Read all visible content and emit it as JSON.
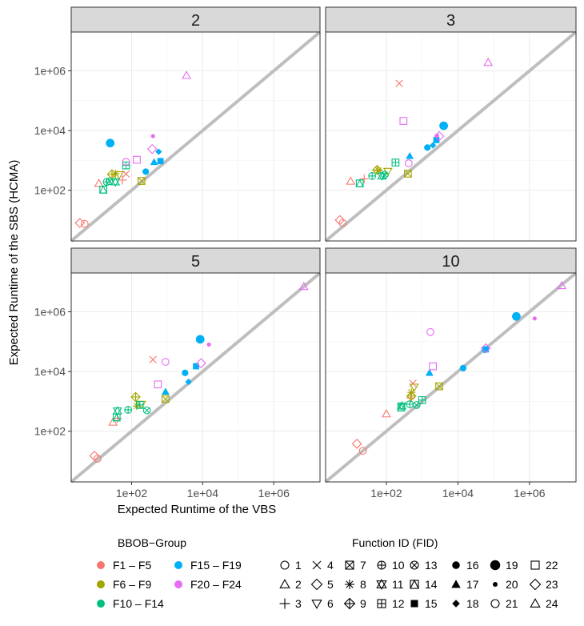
{
  "chart_data": {
    "type": "scatter",
    "facet_by": "dimension",
    "panels": [
      {
        "label": "2",
        "points": [
          {
            "fid": 1,
            "x": 4.8,
            "y": 7.5
          },
          {
            "fid": 2,
            "x": 12,
            "y": 170
          },
          {
            "fid": 3,
            "x": 55,
            "y": 220
          },
          {
            "fid": 4,
            "x": 70,
            "y": 350
          },
          {
            "fid": 5,
            "x": 3.5,
            "y": 8
          },
          {
            "fid": 6,
            "x": 45,
            "y": 330
          },
          {
            "fid": 7,
            "x": 190,
            "y": 205
          },
          {
            "fid": 8,
            "x": 35,
            "y": 360
          },
          {
            "fid": 9,
            "x": 28,
            "y": 340
          },
          {
            "fid": 10,
            "x": 20,
            "y": 190
          },
          {
            "fid": 11,
            "x": 35,
            "y": 190
          },
          {
            "fid": 12,
            "x": 70,
            "y": 680
          },
          {
            "fid": 13,
            "x": 24,
            "y": 200
          },
          {
            "fid": 14,
            "x": 16,
            "y": 105
          },
          {
            "fid": 15,
            "x": 650,
            "y": 950
          },
          {
            "fid": 16,
            "x": 250,
            "y": 420
          },
          {
            "fid": 17,
            "x": 430,
            "y": 880
          },
          {
            "fid": 18,
            "x": 580,
            "y": 1950
          },
          {
            "fid": 19,
            "x": 25,
            "y": 3800
          },
          {
            "fid": 20,
            "x": 400,
            "y": 6500
          },
          {
            "fid": 21,
            "x": 70,
            "y": 900
          },
          {
            "fid": 22,
            "x": 140,
            "y": 1050
          },
          {
            "fid": 23,
            "x": 380,
            "y": 2400
          },
          {
            "fid": 24,
            "x": 3500,
            "y": 700000
          }
        ]
      },
      {
        "label": "3",
        "points": [
          {
            "fid": 1,
            "x": 6,
            "y": 8
          },
          {
            "fid": 2,
            "x": 10,
            "y": 200
          },
          {
            "fid": 3,
            "x": 24,
            "y": 240
          },
          {
            "fid": 4,
            "x": 230,
            "y": 380000
          },
          {
            "fid": 5,
            "x": 5,
            "y": 10
          },
          {
            "fid": 6,
            "x": 110,
            "y": 430
          },
          {
            "fid": 7,
            "x": 400,
            "y": 360
          },
          {
            "fid": 8,
            "x": 60,
            "y": 460
          },
          {
            "fid": 9,
            "x": 55,
            "y": 480
          },
          {
            "fid": 10,
            "x": 40,
            "y": 300
          },
          {
            "fid": 11,
            "x": 75,
            "y": 300
          },
          {
            "fid": 12,
            "x": 180,
            "y": 850
          },
          {
            "fid": 13,
            "x": 90,
            "y": 330
          },
          {
            "fid": 14,
            "x": 18,
            "y": 170
          },
          {
            "fid": 15,
            "x": 2500,
            "y": 4800
          },
          {
            "fid": 16,
            "x": 1400,
            "y": 2700
          },
          {
            "fid": 17,
            "x": 450,
            "y": 1400
          },
          {
            "fid": 18,
            "x": 2000,
            "y": 3200
          },
          {
            "fid": 19,
            "x": 4000,
            "y": 14500
          },
          {
            "fid": 20,
            "x": 2600,
            "y": 6800
          },
          {
            "fid": 21,
            "x": 420,
            "y": 800
          },
          {
            "fid": 22,
            "x": 300,
            "y": 21000
          },
          {
            "fid": 23,
            "x": 3000,
            "y": 6500
          },
          {
            "fid": 24,
            "x": 70000,
            "y": 1900000
          }
        ]
      },
      {
        "label": "5",
        "points": [
          {
            "fid": 1,
            "x": 11,
            "y": 12
          },
          {
            "fid": 2,
            "x": 30,
            "y": 200
          },
          {
            "fid": 3,
            "x": 40,
            "y": 270
          },
          {
            "fid": 4,
            "x": 400,
            "y": 25000
          },
          {
            "fid": 5,
            "x": 9,
            "y": 15
          },
          {
            "fid": 6,
            "x": 190,
            "y": 800
          },
          {
            "fid": 7,
            "x": 900,
            "y": 1200
          },
          {
            "fid": 8,
            "x": 140,
            "y": 700
          },
          {
            "fid": 9,
            "x": 130,
            "y": 1400
          },
          {
            "fid": 10,
            "x": 80,
            "y": 520
          },
          {
            "fid": 11,
            "x": 40,
            "y": 480
          },
          {
            "fid": 12,
            "x": 170,
            "y": 760
          },
          {
            "fid": 13,
            "x": 270,
            "y": 500
          },
          {
            "fid": 14,
            "x": 38,
            "y": 290
          },
          {
            "fid": 15,
            "x": 6500,
            "y": 15000
          },
          {
            "fid": 16,
            "x": 3200,
            "y": 9000
          },
          {
            "fid": 17,
            "x": 900,
            "y": 2100
          },
          {
            "fid": 18,
            "x": 4000,
            "y": 4500
          },
          {
            "fid": 19,
            "x": 8500,
            "y": 120000
          },
          {
            "fid": 20,
            "x": 15000,
            "y": 80000
          },
          {
            "fid": 21,
            "x": 900,
            "y": 21000
          },
          {
            "fid": 22,
            "x": 550,
            "y": 3700
          },
          {
            "fid": 23,
            "x": 9000,
            "y": 19000
          },
          {
            "fid": 24,
            "x": 7000000,
            "y": 7000000
          }
        ]
      },
      {
        "label": "10",
        "points": [
          {
            "fid": 1,
            "x": 22,
            "y": 22
          },
          {
            "fid": 2,
            "x": 100,
            "y": 380
          },
          {
            "fid": 3,
            "x": 480,
            "y": 1300
          },
          {
            "fid": 4,
            "x": 550,
            "y": 4000
          },
          {
            "fid": 5,
            "x": 15,
            "y": 38
          },
          {
            "fid": 6,
            "x": 600,
            "y": 3000
          },
          {
            "fid": 7,
            "x": 3000,
            "y": 3200
          },
          {
            "fid": 8,
            "x": 500,
            "y": 2000
          },
          {
            "fid": 9,
            "x": 500,
            "y": 1500
          },
          {
            "fid": 10,
            "x": 450,
            "y": 800
          },
          {
            "fid": 11,
            "x": 270,
            "y": 700
          },
          {
            "fid": 12,
            "x": 1000,
            "y": 1100
          },
          {
            "fid": 13,
            "x": 700,
            "y": 750
          },
          {
            "fid": 14,
            "x": 260,
            "y": 620
          },
          {
            "fid": 15,
            "x": 60000,
            "y": 55000
          },
          {
            "fid": 16,
            "x": 14000,
            "y": 13000
          },
          {
            "fid": 17,
            "x": 1600,
            "y": 9000
          },
          {
            "fid": 18,
            "x": 55000,
            "y": 52000
          },
          {
            "fid": 19,
            "x": 430000,
            "y": 700000
          },
          {
            "fid": 20,
            "x": 1400000,
            "y": 600000
          },
          {
            "fid": 21,
            "x": 1700,
            "y": 210000
          },
          {
            "fid": 22,
            "x": 2000,
            "y": 15000
          },
          {
            "fid": 23,
            "x": 60000,
            "y": 60000
          },
          {
            "fid": 24,
            "x": 8000000,
            "y": 7500000
          }
        ]
      }
    ],
    "x_axis": {
      "label": "Expected Runtime of the VBS",
      "scale": "log10",
      "ticks": [
        "1e+02",
        "1e+04",
        "1e+06"
      ],
      "tick_values": [
        100,
        10000,
        1000000
      ],
      "range": [
        2,
        20000000
      ]
    },
    "y_axis": {
      "label": "Expected Runtime of the SBS (HCMA)",
      "scale": "log10",
      "ticks": [
        "1e+02",
        "1e+04",
        "1e+06"
      ],
      "tick_values": [
        100,
        10000,
        1000000
      ],
      "range": [
        2,
        20000000
      ]
    },
    "diagonal": "y = x",
    "legend": {
      "groups_title": "BBOB−Group",
      "groups": [
        {
          "label": "F1 – F5",
          "color": "#F8766D",
          "fids": [
            1,
            2,
            3,
            4,
            5
          ]
        },
        {
          "label": "F6 – F9",
          "color": "#A3A500",
          "fids": [
            6,
            7,
            8,
            9
          ]
        },
        {
          "label": "F10 – F14",
          "color": "#00BF7D",
          "fids": [
            10,
            11,
            12,
            13,
            14
          ]
        },
        {
          "label": "F15 – F19",
          "color": "#00B0F6",
          "fids": [
            15,
            16,
            17,
            18,
            19
          ]
        },
        {
          "label": "F20 – F24",
          "color": "#E76BF3",
          "fids": [
            20,
            21,
            22,
            23,
            24
          ]
        }
      ],
      "fid_title": "Function ID (FID)",
      "fids": [
        "1",
        "2",
        "3",
        "4",
        "5",
        "6",
        "7",
        "8",
        "9",
        "10",
        "11",
        "12",
        "13",
        "14",
        "15",
        "16",
        "17",
        "18",
        "19",
        "20",
        "21",
        "22",
        "23",
        "24"
      ]
    }
  }
}
